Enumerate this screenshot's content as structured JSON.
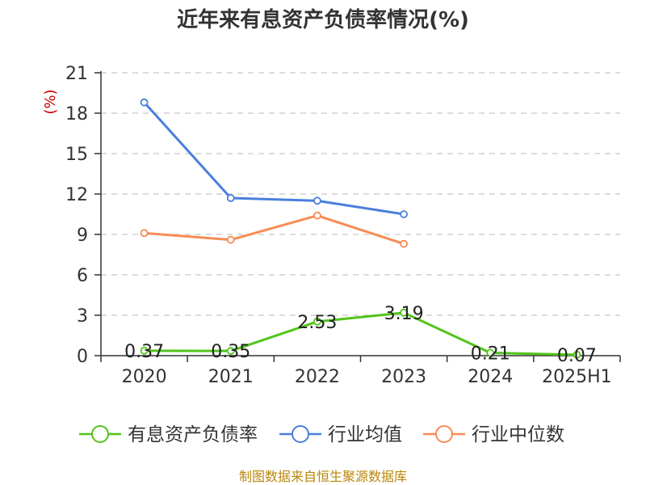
{
  "chart_data": {
    "type": "line",
    "title": "近年来有息资产负债率情况(%)",
    "y_unit_label": "(%)",
    "ylim": [
      0,
      21
    ],
    "y_ticks": [
      "0",
      "3",
      "6",
      "9",
      "12",
      "15",
      "18",
      "21"
    ],
    "categories": [
      "2020",
      "2021",
      "2022",
      "2023",
      "2024",
      "2025H1"
    ],
    "grid": true,
    "legend_position": "bottom",
    "series": [
      {
        "name": "有息资产负债率",
        "color": "#52c41a",
        "values": [
          0.37,
          0.35,
          2.53,
          3.19,
          0.21,
          0.07
        ],
        "labels": [
          "0.37",
          "0.35",
          "2.53",
          "3.19",
          "0.21",
          "0.07"
        ]
      },
      {
        "name": "行业均值",
        "color": "#4a7fdc",
        "values": [
          18.8,
          11.7,
          11.5,
          10.5,
          null,
          null
        ]
      },
      {
        "name": "行业中位数",
        "color": "#f78c55",
        "values": [
          9.1,
          8.6,
          10.4,
          8.3,
          null,
          null
        ]
      }
    ],
    "source": "制图数据来自恒生聚源数据库"
  }
}
